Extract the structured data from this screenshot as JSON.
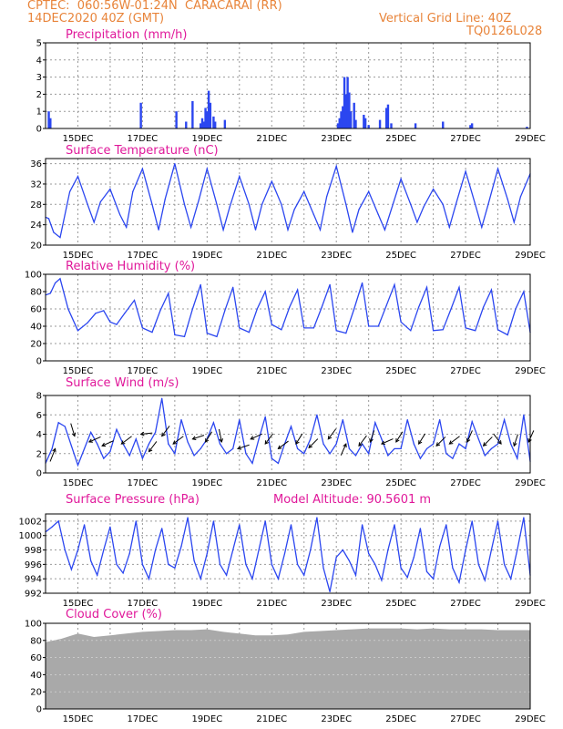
{
  "header": {
    "line1_left": "CPTEC:  060:56W-01:24N  CARACARAI (RR)",
    "line2_left": "14DEC2020 40Z (GMT)",
    "line2_right": "Vertical Grid Line: 40Z",
    "line3_right": "TQ0126L028"
  },
  "colors": {
    "header": "#e8843a",
    "titles": "#e0189a",
    "series": "#2b46f0",
    "grid": "#9a9a9a",
    "cloud": "#a9a9a9",
    "wind_arrows": "#000000"
  },
  "x_ticks": [
    "15DEC",
    "17DEC",
    "19DEC",
    "21DEC",
    "23DEC",
    "25DEC",
    "27DEC",
    "29DEC"
  ],
  "chart_data": [
    {
      "id": "precip",
      "type": "bar",
      "title": "Precipitation (mm/h)",
      "ylim": [
        0,
        5
      ],
      "yticks": [
        "0",
        "1",
        "2",
        "3",
        "4",
        "5"
      ],
      "x": [
        "14.10",
        "14.15",
        "16.95",
        "18.05",
        "18.35",
        "18.55",
        "18.80",
        "18.85",
        "18.90",
        "18.95",
        "19.00",
        "19.05",
        "19.10",
        "19.20",
        "19.25",
        "19.55",
        "23.05",
        "23.10",
        "23.15",
        "23.20",
        "23.25",
        "23.30",
        "23.35",
        "23.40",
        "23.45",
        "23.55",
        "23.60",
        "23.85",
        "23.90",
        "24.00",
        "24.35",
        "24.55",
        "24.60",
        "24.70",
        "25.45",
        "26.30",
        "27.15",
        "27.20",
        "28.90"
      ],
      "values": [
        1.0,
        0.6,
        1.5,
        1.0,
        0.4,
        1.6,
        0.3,
        0.6,
        0.4,
        1.2,
        1.0,
        2.2,
        1.5,
        0.7,
        0.4,
        0.5,
        0.3,
        0.6,
        1.0,
        1.3,
        3.0,
        2.0,
        3.0,
        2.1,
        1.0,
        1.5,
        0.5,
        0.8,
        0.6,
        0.2,
        0.5,
        1.2,
        1.4,
        0.3,
        0.3,
        0.4,
        0.2,
        0.3,
        0.1
      ]
    },
    {
      "id": "temp",
      "type": "line",
      "title": "Surface Temperature (nC)",
      "ylim": [
        20,
        37
      ],
      "yticks": [
        "20",
        "24",
        "28",
        "32",
        "36"
      ],
      "series": [
        {
          "x": [
            "14.00",
            "14.10",
            "14.25",
            "14.45",
            "14.75",
            "15.00",
            "15.30",
            "15.50",
            "15.70",
            "16.00",
            "16.30",
            "16.50",
            "16.70",
            "17.00",
            "17.30",
            "17.50",
            "17.70",
            "18.00",
            "18.30",
            "18.50",
            "18.75",
            "19.00",
            "19.30",
            "19.50",
            "19.70",
            "20.00",
            "20.30",
            "20.50",
            "20.70",
            "21.00",
            "21.30",
            "21.50",
            "21.70",
            "22.00",
            "22.30",
            "22.50",
            "22.70",
            "23.00",
            "23.30",
            "23.50",
            "23.70",
            "24.00",
            "24.30",
            "24.50",
            "24.70",
            "25.00",
            "25.30",
            "25.50",
            "25.70",
            "26.00",
            "26.30",
            "26.50",
            "26.70",
            "27.00",
            "27.30",
            "27.50",
            "27.70",
            "28.00",
            "28.30",
            "28.50",
            "28.70",
            "29.00"
          ],
          "values": [
            25.5,
            25.2,
            22.5,
            21.5,
            30.5,
            33.5,
            28.0,
            24.5,
            28.5,
            31.0,
            26.0,
            23.5,
            30.5,
            35.0,
            28.0,
            23.0,
            29.0,
            36.0,
            28.0,
            23.5,
            29.0,
            35.0,
            28.0,
            23.0,
            27.5,
            33.5,
            28.0,
            23.0,
            28.0,
            32.5,
            28.0,
            23.0,
            27.0,
            30.5,
            26.0,
            23.0,
            29.5,
            35.5,
            28.0,
            22.5,
            27.0,
            30.5,
            26.0,
            23.0,
            27.0,
            33.0,
            28.0,
            24.5,
            27.5,
            31.0,
            28.0,
            23.5,
            28.0,
            34.5,
            28.0,
            23.5,
            28.0,
            35.0,
            29.0,
            24.5,
            29.5,
            34.0
          ]
        }
      ]
    },
    {
      "id": "rh",
      "type": "line",
      "title": "Relative Humidity (%)",
      "ylim": [
        0,
        100
      ],
      "yticks": [
        "0",
        "20",
        "40",
        "60",
        "80",
        "100"
      ],
      "series": [
        {
          "x": [
            "14.00",
            "14.15",
            "14.30",
            "14.45",
            "14.70",
            "15.00",
            "15.30",
            "15.55",
            "15.80",
            "16.00",
            "16.20",
            "16.45",
            "16.75",
            "17.00",
            "17.30",
            "17.55",
            "17.80",
            "18.00",
            "18.30",
            "18.55",
            "18.80",
            "19.00",
            "19.30",
            "19.55",
            "19.80",
            "20.00",
            "20.30",
            "20.55",
            "20.80",
            "21.00",
            "21.30",
            "21.55",
            "21.80",
            "22.00",
            "22.30",
            "22.55",
            "22.80",
            "23.00",
            "23.30",
            "23.55",
            "23.80",
            "24.00",
            "24.30",
            "24.55",
            "24.80",
            "25.00",
            "25.30",
            "25.55",
            "25.80",
            "26.00",
            "26.30",
            "26.55",
            "26.80",
            "27.00",
            "27.30",
            "27.55",
            "27.80",
            "28.00",
            "28.30",
            "28.55",
            "28.80",
            "29.00"
          ],
          "values": [
            76,
            78,
            90,
            95,
            60,
            35,
            44,
            55,
            58,
            45,
            42,
            55,
            70,
            38,
            33,
            58,
            78,
            30,
            28,
            60,
            88,
            32,
            28,
            58,
            85,
            38,
            33,
            60,
            80,
            42,
            36,
            62,
            82,
            38,
            38,
            62,
            88,
            35,
            32,
            60,
            90,
            40,
            40,
            64,
            88,
            45,
            35,
            62,
            85,
            35,
            36,
            60,
            85,
            38,
            35,
            62,
            82,
            36,
            30,
            60,
            80,
            33
          ]
        }
      ]
    },
    {
      "id": "wind",
      "type": "line",
      "title": "Surface Wind (m/s)",
      "ylim": [
        0,
        8
      ],
      "yticks": [
        "0",
        "2",
        "4",
        "6",
        "8"
      ],
      "series": [
        {
          "x": [
            "14.00",
            "14.20",
            "14.40",
            "14.60",
            "14.80",
            "15.00",
            "15.20",
            "15.40",
            "15.60",
            "15.80",
            "16.00",
            "16.20",
            "16.40",
            "16.60",
            "16.80",
            "17.00",
            "17.20",
            "17.40",
            "17.60",
            "17.80",
            "18.00",
            "18.20",
            "18.40",
            "18.60",
            "18.80",
            "19.00",
            "19.20",
            "19.40",
            "19.60",
            "19.80",
            "20.00",
            "20.20",
            "20.40",
            "20.60",
            "20.80",
            "21.00",
            "21.20",
            "21.40",
            "21.60",
            "21.80",
            "22.00",
            "22.20",
            "22.40",
            "22.60",
            "22.80",
            "23.00",
            "23.20",
            "23.40",
            "23.60",
            "23.80",
            "24.00",
            "24.20",
            "24.40",
            "24.60",
            "24.80",
            "25.00",
            "25.20",
            "25.40",
            "25.60",
            "25.80",
            "26.00",
            "26.20",
            "26.40",
            "26.60",
            "26.80",
            "27.00",
            "27.20",
            "27.40",
            "27.60",
            "27.80",
            "28.00",
            "28.20",
            "28.40",
            "28.60",
            "28.80",
            "29.00"
          ],
          "values": [
            1.0,
            2.5,
            5.2,
            4.8,
            2.8,
            0.8,
            2.5,
            4.2,
            3.0,
            1.5,
            2.2,
            4.5,
            3.0,
            1.8,
            3.5,
            1.5,
            3.0,
            4.2,
            7.7,
            3.0,
            2.0,
            5.5,
            3.2,
            1.8,
            2.5,
            3.5,
            5.2,
            3.0,
            2.0,
            2.5,
            5.5,
            2.0,
            1.0,
            3.5,
            5.8,
            1.5,
            1.0,
            3.0,
            4.8,
            2.5,
            2.0,
            3.5,
            6.0,
            3.0,
            2.0,
            3.0,
            5.5,
            2.5,
            1.8,
            3.0,
            2.0,
            5.2,
            3.5,
            1.8,
            2.5,
            2.5,
            5.5,
            3.0,
            1.5,
            2.5,
            3.0,
            5.5,
            2.0,
            1.5,
            3.0,
            2.5,
            5.3,
            3.5,
            1.8,
            2.5,
            3.0,
            5.5,
            3.0,
            1.5,
            6.0,
            1.2
          ]
        }
      ],
      "arrows": [
        {
          "x": "14.30",
          "s": 2.5,
          "u": -0.4,
          "v": -1.0
        },
        {
          "x": "14.90",
          "s": 3.8,
          "u": -0.3,
          "v": 1.0
        },
        {
          "x": "15.35",
          "s": 3.2,
          "u": 0.9,
          "v": 0.4
        },
        {
          "x": "15.75",
          "s": 2.8,
          "u": 0.9,
          "v": 0.4
        },
        {
          "x": "16.35",
          "s": 3.0,
          "u": 0.8,
          "v": 0.6
        },
        {
          "x": "16.95",
          "s": 4.0,
          "u": 0.9,
          "v": 0.1
        },
        {
          "x": "17.20",
          "s": 2.2,
          "u": 0.6,
          "v": 0.8
        },
        {
          "x": "17.60",
          "s": 3.8,
          "u": 0.6,
          "v": 0.8
        },
        {
          "x": "17.95",
          "s": 3.0,
          "u": 0.8,
          "v": 0.6
        },
        {
          "x": "18.55",
          "s": 3.5,
          "u": 0.9,
          "v": 0.3
        },
        {
          "x": "18.95",
          "s": 3.2,
          "u": 0.5,
          "v": 0.8
        },
        {
          "x": "19.45",
          "s": 3.2,
          "u": -0.2,
          "v": 1.0
        },
        {
          "x": "19.95",
          "s": 2.5,
          "u": 0.9,
          "v": 0.3
        },
        {
          "x": "20.35",
          "s": 3.5,
          "u": 0.9,
          "v": 0.4
        },
        {
          "x": "20.80",
          "s": 3.0,
          "u": 0.6,
          "v": 0.8
        },
        {
          "x": "21.20",
          "s": 2.5,
          "u": 0.8,
          "v": 0.6
        },
        {
          "x": "21.75",
          "s": 3.0,
          "u": 0.5,
          "v": 0.8
        },
        {
          "x": "22.15",
          "s": 2.6,
          "u": 0.7,
          "v": 0.7
        },
        {
          "x": "22.75",
          "s": 3.5,
          "u": 0.6,
          "v": 0.8
        },
        {
          "x": "23.30",
          "s": 3.0,
          "u": -0.4,
          "v": -0.9
        },
        {
          "x": "23.70",
          "s": 2.8,
          "u": 0.6,
          "v": 0.8
        },
        {
          "x": "24.05",
          "s": 3.2,
          "u": 0.3,
          "v": 0.9
        },
        {
          "x": "24.40",
          "s": 3.0,
          "u": 0.9,
          "v": 0.4
        },
        {
          "x": "24.85",
          "s": 3.2,
          "u": 0.5,
          "v": 0.8
        },
        {
          "x": "25.55",
          "s": 3.0,
          "u": 0.5,
          "v": 0.8
        },
        {
          "x": "26.10",
          "s": 2.8,
          "u": 0.7,
          "v": 0.7
        },
        {
          "x": "26.50",
          "s": 3.0,
          "u": 0.8,
          "v": 0.6
        },
        {
          "x": "27.05",
          "s": 3.2,
          "u": 0.4,
          "v": 0.9
        },
        {
          "x": "27.55",
          "s": 2.8,
          "u": 0.7,
          "v": 0.7
        },
        {
          "x": "28.10",
          "s": 3.0,
          "u": -0.6,
          "v": 0.8
        },
        {
          "x": "28.50",
          "s": 2.8,
          "u": 0.3,
          "v": 0.9
        },
        {
          "x": "28.95",
          "s": 3.2,
          "u": 0.4,
          "v": 0.9
        }
      ]
    },
    {
      "id": "pres",
      "type": "line",
      "title": "Surface Pressure (hPa)",
      "note": "Model Altitude: 90.5601 m",
      "ylim": [
        992,
        1003
      ],
      "yticks": [
        "992",
        "994",
        "996",
        "998",
        "1000",
        "1002"
      ],
      "series": [
        {
          "x": [
            "14.00",
            "14.20",
            "14.40",
            "14.60",
            "14.80",
            "15.00",
            "15.20",
            "15.40",
            "15.60",
            "15.80",
            "16.00",
            "16.20",
            "16.40",
            "16.60",
            "16.80",
            "17.00",
            "17.20",
            "17.40",
            "17.60",
            "17.80",
            "18.00",
            "18.20",
            "18.40",
            "18.60",
            "18.80",
            "19.00",
            "19.20",
            "19.40",
            "19.60",
            "19.80",
            "20.00",
            "20.20",
            "20.40",
            "20.60",
            "20.80",
            "21.00",
            "21.20",
            "21.40",
            "21.60",
            "21.80",
            "22.00",
            "22.20",
            "22.40",
            "22.60",
            "22.80",
            "23.00",
            "23.20",
            "23.40",
            "23.60",
            "23.80",
            "24.00",
            "24.20",
            "24.40",
            "24.60",
            "24.80",
            "25.00",
            "25.20",
            "25.40",
            "25.60",
            "25.80",
            "26.00",
            "26.20",
            "26.40",
            "26.60",
            "26.80",
            "27.00",
            "27.20",
            "27.40",
            "27.60",
            "27.80",
            "28.00",
            "28.20",
            "28.40",
            "28.60",
            "28.80",
            "29.00"
          ],
          "values": [
            1000.5,
            1001.2,
            1002.0,
            998.0,
            995.3,
            998.0,
            1001.5,
            996.5,
            994.5,
            998.0,
            1001.2,
            996.0,
            994.8,
            997.5,
            1002.0,
            996.0,
            994.0,
            998.0,
            1001.0,
            996.0,
            995.5,
            998.5,
            1002.5,
            996.5,
            994.0,
            997.5,
            1002.0,
            996.0,
            994.5,
            998.0,
            1001.5,
            996.0,
            994.0,
            998.0,
            1002.0,
            996.0,
            994.0,
            997.5,
            1001.5,
            996.0,
            994.5,
            998.0,
            1002.5,
            995.5,
            992.2,
            997.0,
            998.0,
            996.5,
            994.5,
            1001.5,
            997.5,
            996.0,
            993.8,
            998.0,
            1001.5,
            995.5,
            994.2,
            997.0,
            1001.0,
            995.0,
            994.0,
            998.5,
            1001.5,
            995.5,
            993.5,
            998.0,
            1002.0,
            996.0,
            993.8,
            998.0,
            1002.0,
            996.0,
            994.0,
            998.0,
            1002.5,
            994.5
          ]
        }
      ]
    },
    {
      "id": "cloud",
      "type": "area",
      "title": "Cloud Cover (%)",
      "ylim": [
        0,
        100
      ],
      "yticks": [
        "0",
        "20",
        "40",
        "60",
        "80",
        "100"
      ],
      "series": [
        {
          "x": [
            "14.00",
            "14.50",
            "15.00",
            "15.50",
            "16.00",
            "16.50",
            "17.00",
            "17.50",
            "18.00",
            "18.50",
            "19.00",
            "19.50",
            "20.00",
            "20.50",
            "21.00",
            "21.50",
            "22.00",
            "22.50",
            "23.00",
            "23.50",
            "24.00",
            "24.50",
            "25.00",
            "25.50",
            "26.00",
            "26.50",
            "27.00",
            "27.50",
            "28.00",
            "28.50",
            "29.00"
          ],
          "values": [
            78,
            82,
            88,
            84,
            86,
            88,
            90,
            91,
            92,
            92,
            93,
            90,
            88,
            86,
            86,
            87,
            90,
            91,
            92,
            93,
            94,
            94,
            94,
            93,
            94,
            93,
            93,
            93,
            92,
            92,
            92
          ]
        }
      ]
    }
  ]
}
